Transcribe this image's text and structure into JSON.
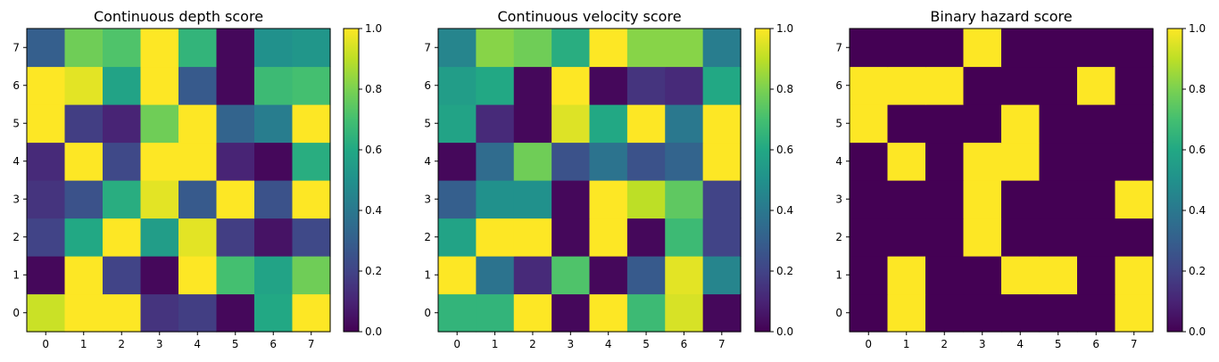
{
  "chart_data": [
    {
      "type": "heatmap",
      "title": "Continuous depth score",
      "xlabel": "",
      "ylabel": "",
      "x_ticks": [
        "0",
        "1",
        "2",
        "3",
        "4",
        "5",
        "6",
        "7"
      ],
      "y_ticks": [
        "0",
        "1",
        "2",
        "3",
        "4",
        "5",
        "6",
        "7"
      ],
      "y_origin": "lower",
      "colormap": "viridis",
      "clim": [
        0,
        1
      ],
      "colorbar_ticks": [
        "0.0",
        "0.2",
        "0.4",
        "0.6",
        "0.8",
        "1.0"
      ],
      "rows": [
        [
          0.92,
          1.0,
          1.0,
          0.15,
          0.18,
          0.02,
          0.6,
          1.0
        ],
        [
          0.02,
          1.0,
          0.2,
          0.02,
          1.0,
          0.7,
          0.58,
          0.78
        ],
        [
          0.2,
          0.6,
          1.0,
          0.55,
          0.96,
          0.18,
          0.05,
          0.22
        ],
        [
          0.15,
          0.25,
          0.62,
          0.96,
          0.28,
          1.0,
          0.25,
          1.0
        ],
        [
          0.12,
          1.0,
          0.22,
          1.0,
          1.0,
          0.1,
          0.02,
          0.62
        ],
        [
          1.0,
          0.18,
          0.1,
          0.78,
          1.0,
          0.32,
          0.42,
          1.0
        ],
        [
          1.0,
          0.96,
          0.58,
          1.0,
          0.28,
          0.02,
          0.68,
          0.7
        ],
        [
          0.3,
          0.78,
          0.72,
          1.0,
          0.65,
          0.02,
          0.5,
          0.52
        ]
      ]
    },
    {
      "type": "heatmap",
      "title": "Continuous velocity score",
      "xlabel": "",
      "ylabel": "",
      "x_ticks": [
        "0",
        "1",
        "2",
        "3",
        "4",
        "5",
        "6",
        "7"
      ],
      "y_ticks": [
        "0",
        "1",
        "2",
        "3",
        "4",
        "5",
        "6",
        "7"
      ],
      "y_origin": "lower",
      "colormap": "viridis",
      "clim": [
        0,
        1
      ],
      "colorbar_ticks": [
        "0.0",
        "0.2",
        "0.4",
        "0.6",
        "0.8",
        "1.0"
      ],
      "rows": [
        [
          0.65,
          0.65,
          1.0,
          0.02,
          1.0,
          0.68,
          0.94,
          0.02
        ],
        [
          1.0,
          0.38,
          0.12,
          0.72,
          0.02,
          0.28,
          0.96,
          0.45
        ],
        [
          0.58,
          1.0,
          1.0,
          0.02,
          1.0,
          0.02,
          0.68,
          0.2
        ],
        [
          0.3,
          0.5,
          0.5,
          0.02,
          1.0,
          0.9,
          0.75,
          0.2
        ],
        [
          0.02,
          0.35,
          0.78,
          0.25,
          0.38,
          0.25,
          0.32,
          1.0
        ],
        [
          0.58,
          0.12,
          0.02,
          0.95,
          0.6,
          1.0,
          0.4,
          1.0
        ],
        [
          0.55,
          0.6,
          0.02,
          1.0,
          0.02,
          0.15,
          0.12,
          0.6
        ],
        [
          0.45,
          0.82,
          0.78,
          0.62,
          1.0,
          0.82,
          0.82,
          0.42
        ]
      ]
    },
    {
      "type": "heatmap",
      "title": "Binary hazard score",
      "xlabel": "",
      "ylabel": "",
      "x_ticks": [
        "0",
        "1",
        "2",
        "3",
        "4",
        "5",
        "6",
        "7"
      ],
      "y_ticks": [
        "0",
        "1",
        "2",
        "3",
        "4",
        "5",
        "6",
        "7"
      ],
      "y_origin": "lower",
      "colormap": "viridis",
      "clim": [
        0,
        1
      ],
      "colorbar_ticks": [
        "0.0",
        "0.2",
        "0.4",
        "0.6",
        "0.8",
        "1.0"
      ],
      "rows": [
        [
          0,
          1,
          0,
          0,
          0,
          0,
          0,
          1
        ],
        [
          0,
          1,
          0,
          0,
          1,
          1,
          0,
          1
        ],
        [
          0,
          0,
          0,
          1,
          0,
          0,
          0,
          0
        ],
        [
          0,
          0,
          0,
          1,
          0,
          0,
          0,
          1
        ],
        [
          0,
          1,
          0,
          1,
          1,
          0,
          0,
          0
        ],
        [
          1,
          0,
          0,
          0,
          1,
          0,
          0,
          0
        ],
        [
          1,
          1,
          1,
          0,
          0,
          0,
          1,
          0
        ],
        [
          0,
          0,
          0,
          1,
          0,
          0,
          0,
          0
        ]
      ]
    }
  ]
}
